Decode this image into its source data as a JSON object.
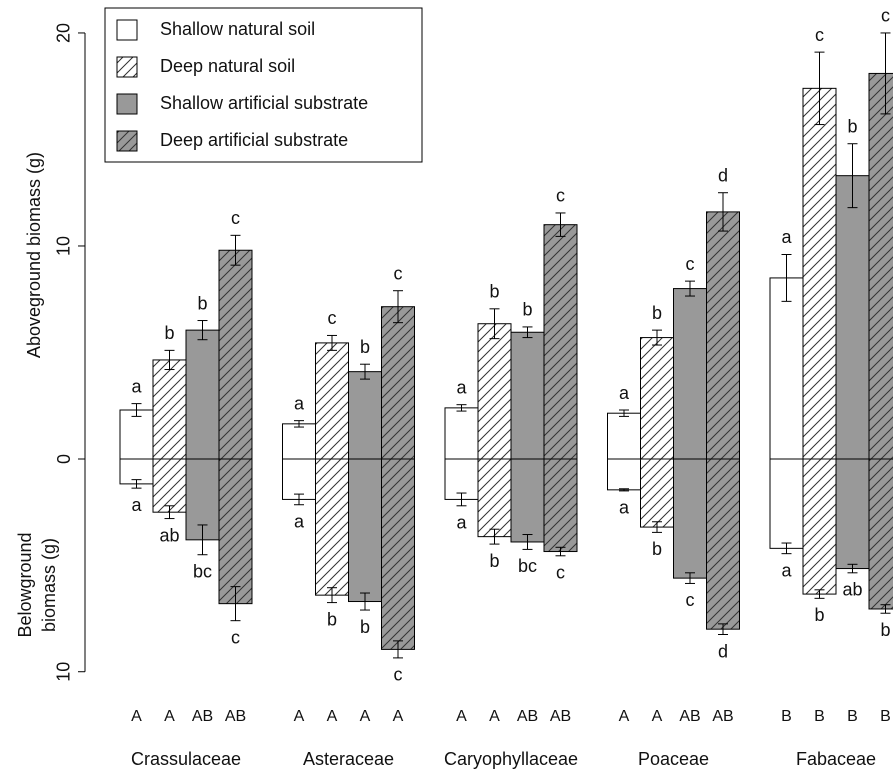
{
  "chart_data": {
    "type": "mirrored_bar",
    "ylabel_top": "Aboveground  biomass (g)",
    "ylabel_bottom": [
      "Belowground",
      "biomass (g)"
    ],
    "upper": {
      "ylim": [
        0,
        21.5
      ],
      "yticks": [
        0,
        10,
        20
      ]
    },
    "lower": {
      "ylim": [
        0,
        11
      ],
      "yticks": [
        10
      ],
      "inverted": true
    },
    "categories": [
      "Crassulaceae",
      "Asteraceae",
      "Caryophyllaceae",
      "Poaceae",
      "Fabaceae"
    ],
    "group_letters": [
      [
        "A",
        "A",
        "AB",
        "AB"
      ],
      [
        "A",
        "A",
        "A",
        "A"
      ],
      [
        "A",
        "A",
        "AB",
        "AB"
      ],
      [
        "A",
        "A",
        "AB",
        "AB"
      ],
      [
        "B",
        "B",
        "B",
        "B"
      ]
    ],
    "series": [
      {
        "name": "Shallow natural soil",
        "color": "#ffffff",
        "hatch": false,
        "above": [
          2.3,
          1.65,
          2.4,
          2.15,
          8.5
        ],
        "above_err": [
          0.3,
          0.15,
          0.15,
          0.15,
          1.1
        ],
        "above_letters": [
          "a",
          "a",
          "a",
          "a",
          "a"
        ],
        "below": [
          1.17,
          1.9,
          1.9,
          1.45,
          4.2
        ],
        "below_err": [
          0.2,
          0.25,
          0.3,
          0.05,
          0.25
        ],
        "below_letters": [
          "a",
          "a",
          "a",
          "a",
          "a"
        ]
      },
      {
        "name": "Deep natural soil",
        "color": "#ffffff",
        "hatch": true,
        "above": [
          4.65,
          5.45,
          6.35,
          5.7,
          17.4
        ],
        "above_err": [
          0.45,
          0.35,
          0.7,
          0.35,
          1.7
        ],
        "above_letters": [
          "b",
          "c",
          "b",
          "b",
          "c"
        ],
        "below": [
          2.5,
          6.4,
          3.65,
          3.2,
          6.35
        ],
        "below_err": [
          0.3,
          0.35,
          0.35,
          0.25,
          0.2
        ],
        "below_letters": [
          "ab",
          "b",
          "b",
          "b",
          "b"
        ]
      },
      {
        "name": "Shallow artificial substrate",
        "color": "#999999",
        "hatch": false,
        "above": [
          6.05,
          4.1,
          5.95,
          8.0,
          13.3
        ],
        "above_err": [
          0.45,
          0.35,
          0.25,
          0.35,
          1.5
        ],
        "above_letters": [
          "b",
          "b",
          "b",
          "c",
          "b"
        ],
        "below": [
          3.8,
          6.7,
          3.9,
          5.6,
          5.15
        ],
        "below_err": [
          0.7,
          0.4,
          0.35,
          0.25,
          0.2
        ],
        "below_letters": [
          "bc",
          "b",
          "bc",
          "c",
          "ab"
        ]
      },
      {
        "name": "Deep artificial substrate",
        "color": "#999999",
        "hatch": true,
        "above": [
          9.8,
          7.15,
          11.0,
          11.6,
          18.1
        ],
        "above_err": [
          0.7,
          0.75,
          0.55,
          0.9,
          1.9
        ],
        "above_letters": [
          "c",
          "c",
          "c",
          "d",
          "c"
        ],
        "below": [
          6.8,
          8.95,
          4.35,
          8.0,
          7.05
        ],
        "below_err": [
          0.8,
          0.4,
          0.2,
          0.25,
          0.2
        ],
        "below_letters": [
          "c",
          "c",
          "c",
          "d",
          "b"
        ]
      }
    ]
  }
}
